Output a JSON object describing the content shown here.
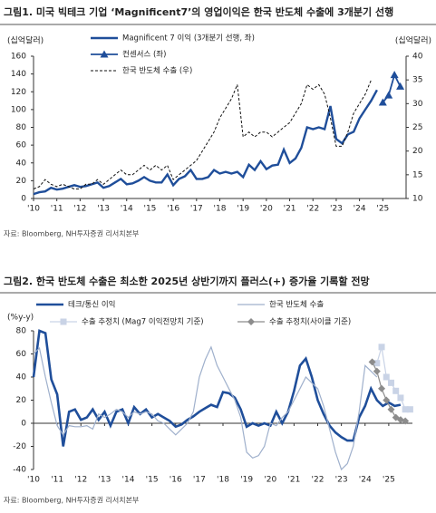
{
  "chart_data": [
    {
      "type": "line",
      "title": "그림1. 미국 빅테크 기업 ‘Magnificent7’의 영업이익은 한국 반도체 수출에 3개분기 선행",
      "y_label": "(십억달러)",
      "y2_label": "(십억달러)",
      "source": "자료: Bloomberg, NH투자증권 리서치본부",
      "xlim": [
        2010,
        2026
      ],
      "xticks": [
        {
          "value": 2010,
          "label": "'10"
        },
        {
          "value": 2011,
          "label": "'11"
        },
        {
          "value": 2012,
          "label": "'12"
        },
        {
          "value": 2013,
          "label": "'13"
        },
        {
          "value": 2014,
          "label": "'14"
        },
        {
          "value": 2015,
          "label": "'15"
        },
        {
          "value": 2016,
          "label": "'16"
        },
        {
          "value": 2017,
          "label": "'17"
        },
        {
          "value": 2018,
          "label": "'18"
        },
        {
          "value": 2019,
          "label": "'19"
        },
        {
          "value": 2020,
          "label": "'20"
        },
        {
          "value": 2021,
          "label": "'21"
        },
        {
          "value": 2022,
          "label": "'22"
        },
        {
          "value": 2023,
          "label": "'23"
        },
        {
          "value": 2024,
          "label": "'24"
        },
        {
          "value": 2025,
          "label": "'25"
        }
      ],
      "ylim": [
        0,
        160
      ],
      "yticks": [
        0,
        20,
        40,
        60,
        80,
        100,
        120,
        140,
        160
      ],
      "y2lim": [
        10,
        40
      ],
      "y2ticks": [
        10,
        15,
        20,
        25,
        30,
        35,
        40
      ],
      "series": [
        {
          "name": "Magnificent 7 이익 (3개분기 선행, 좌)",
          "color": "#1f4e9a",
          "style": "solid",
          "x": [
            2010,
            2010.25,
            2010.5,
            2010.75,
            2011,
            2011.25,
            2011.5,
            2011.75,
            2012,
            2012.25,
            2012.5,
            2012.75,
            2013,
            2013.25,
            2013.5,
            2013.75,
            2014,
            2014.25,
            2014.5,
            2014.75,
            2015,
            2015.25,
            2015.5,
            2015.75,
            2016,
            2016.25,
            2016.5,
            2016.75,
            2017,
            2017.25,
            2017.5,
            2017.75,
            2018,
            2018.25,
            2018.5,
            2018.75,
            2019,
            2019.25,
            2019.5,
            2019.75,
            2020,
            2020.25,
            2020.5,
            2020.75,
            2021,
            2021.25,
            2021.5,
            2021.75,
            2022,
            2022.25,
            2022.5,
            2022.75,
            2023,
            2023.25,
            2023.5,
            2023.75,
            2024,
            2024.25,
            2024.5,
            2024.75
          ],
          "values": [
            5,
            7,
            8,
            12,
            10,
            11,
            13,
            15,
            13,
            14,
            16,
            18,
            12,
            14,
            18,
            22,
            16,
            17,
            20,
            24,
            20,
            18,
            18,
            27,
            15,
            22,
            25,
            32,
            22,
            22,
            24,
            32,
            28,
            30,
            28,
            30,
            24,
            38,
            32,
            42,
            33,
            37,
            38,
            55,
            40,
            45,
            57,
            80,
            78,
            80,
            78,
            104,
            67,
            62,
            72,
            75,
            90,
            100,
            110,
            122
          ]
        },
        {
          "name": "컨센서스 (좌)",
          "color": "#1f4e9a",
          "style": "solid",
          "marker": "triangle",
          "x": [
            2025,
            2025.25,
            2025.5,
            2025.75
          ],
          "values": [
            108,
            116,
            139,
            126
          ]
        },
        {
          "name": "한국 반도체 수출 (우)",
          "color": "#111111",
          "style": "dashed",
          "axis": "y2",
          "x": [
            2010,
            2010.25,
            2010.5,
            2010.75,
            2011,
            2011.25,
            2011.5,
            2011.75,
            2012,
            2012.25,
            2012.5,
            2012.75,
            2013,
            2013.25,
            2013.5,
            2013.75,
            2014,
            2014.25,
            2014.5,
            2014.75,
            2015,
            2015.25,
            2015.5,
            2015.75,
            2016,
            2016.25,
            2016.5,
            2016.75,
            2017,
            2017.25,
            2017.5,
            2017.75,
            2018,
            2018.25,
            2018.5,
            2018.75,
            2019,
            2019.25,
            2019.5,
            2019.75,
            2020,
            2020.25,
            2020.5,
            2020.75,
            2021,
            2021.25,
            2021.5,
            2021.75,
            2022,
            2022.25,
            2022.5,
            2022.75,
            2023,
            2023.25,
            2023.5,
            2023.75,
            2024,
            2024.25,
            2024.5
          ],
          "values": [
            12,
            12.5,
            14,
            13,
            12.5,
            13,
            12.5,
            12,
            12,
            13,
            13,
            14,
            13,
            14,
            15,
            16,
            15,
            15,
            16,
            17,
            16,
            17,
            16,
            17,
            14,
            15,
            16,
            17,
            18,
            20,
            22,
            24,
            27,
            29,
            31,
            34,
            23,
            24,
            23,
            24,
            24,
            23,
            24,
            25,
            26,
            28,
            30,
            34,
            33,
            34,
            32,
            27,
            21,
            21,
            24,
            28,
            30,
            32,
            35
          ]
        }
      ]
    },
    {
      "type": "line",
      "title": "그림2. 한국 반도체 수출은 최소한 2025년 상반기까지 플러스(+) 증가율 기록할 전망",
      "y_label": "(%y-y)",
      "source": "자료: Bloomberg, NH투자증권 리서치본부",
      "xlim": [
        2010,
        2026
      ],
      "xticks": [
        {
          "value": 2010,
          "label": "'10"
        },
        {
          "value": 2011,
          "label": "'11"
        },
        {
          "value": 2012,
          "label": "'12"
        },
        {
          "value": 2013,
          "label": "'13"
        },
        {
          "value": 2014,
          "label": "'14"
        },
        {
          "value": 2015,
          "label": "'15"
        },
        {
          "value": 2016,
          "label": "'16"
        },
        {
          "value": 2017,
          "label": "'17"
        },
        {
          "value": 2018,
          "label": "'18"
        },
        {
          "value": 2019,
          "label": "'19"
        },
        {
          "value": 2020,
          "label": "'20"
        },
        {
          "value": 2021,
          "label": "'21"
        },
        {
          "value": 2022,
          "label": "'22"
        },
        {
          "value": 2023,
          "label": "'23"
        },
        {
          "value": 2024,
          "label": "'24"
        },
        {
          "value": 2025,
          "label": "'25"
        }
      ],
      "ylim": [
        -40,
        80
      ],
      "yticks": [
        -40,
        -20,
        0,
        20,
        40,
        60,
        80
      ],
      "series": [
        {
          "name": "테크/통신 이익",
          "color": "#1f4e9a",
          "style": "solid",
          "x": [
            2010,
            2010.25,
            2010.5,
            2010.75,
            2011,
            2011.25,
            2011.5,
            2011.75,
            2012,
            2012.25,
            2012.5,
            2012.75,
            2013,
            2013.25,
            2013.5,
            2013.75,
            2014,
            2014.25,
            2014.5,
            2014.75,
            2015,
            2015.25,
            2015.5,
            2015.75,
            2016,
            2016.25,
            2016.5,
            2016.75,
            2017,
            2017.25,
            2017.5,
            2017.75,
            2018,
            2018.25,
            2018.5,
            2018.75,
            2019,
            2019.25,
            2019.5,
            2019.75,
            2020,
            2020.25,
            2020.5,
            2020.75,
            2021,
            2021.25,
            2021.5,
            2021.75,
            2022,
            2022.25,
            2022.5,
            2022.75,
            2023,
            2023.25,
            2023.5,
            2023.75,
            2024,
            2024.25,
            2024.5,
            2024.75,
            2025,
            2025.25,
            2025.5
          ],
          "values": [
            40,
            80,
            78,
            38,
            25,
            -20,
            10,
            12,
            3,
            5,
            12,
            3,
            10,
            -2,
            10,
            12,
            0,
            14,
            8,
            12,
            5,
            8,
            5,
            2,
            -3,
            -1,
            3,
            6,
            10,
            13,
            16,
            14,
            27,
            26,
            22,
            12,
            -3,
            0,
            -2,
            0,
            -2,
            10,
            0,
            10,
            28,
            50,
            56,
            40,
            20,
            8,
            -2,
            -8,
            -12,
            -15,
            -15,
            5,
            15,
            30,
            20,
            15,
            18,
            15,
            16
          ]
        },
        {
          "name": "한국 반도체 수출",
          "color": "#9fb0cc",
          "style": "solid",
          "x": [
            2010,
            2010.25,
            2010.5,
            2010.75,
            2011,
            2011.25,
            2011.5,
            2011.75,
            2012,
            2012.25,
            2012.5,
            2012.75,
            2013,
            2013.25,
            2013.5,
            2013.75,
            2014,
            2014.25,
            2014.5,
            2014.75,
            2015,
            2015.25,
            2015.5,
            2015.75,
            2016,
            2016.25,
            2016.5,
            2016.75,
            2017,
            2017.25,
            2017.5,
            2017.75,
            2018,
            2018.25,
            2018.5,
            2018.75,
            2019,
            2019.25,
            2019.5,
            2019.75,
            2020,
            2020.25,
            2020.5,
            2020.75,
            2021,
            2021.25,
            2021.5,
            2021.75,
            2022,
            2022.25,
            2022.5,
            2022.75,
            2023,
            2023.25,
            2023.5,
            2023.75,
            2024,
            2024.25,
            2024.5
          ],
          "values": [
            60,
            65,
            40,
            18,
            -2,
            -10,
            -2,
            -3,
            -3,
            -2,
            -5,
            8,
            5,
            8,
            12,
            10,
            5,
            10,
            8,
            10,
            8,
            2,
            0,
            -5,
            -10,
            -5,
            0,
            10,
            40,
            55,
            66,
            50,
            40,
            30,
            20,
            5,
            -25,
            -30,
            -28,
            -20,
            0,
            -2,
            5,
            10,
            20,
            30,
            40,
            35,
            30,
            15,
            -5,
            -25,
            -40,
            -35,
            -20,
            10,
            50,
            45,
            40
          ]
        },
        {
          "name": "수출 추정치 (Mag7 이익전망치 기준)",
          "color": "#c9d3e6",
          "style": "solid",
          "marker": "square",
          "x": [
            2024.5,
            2024.7,
            2024.9,
            2025.1,
            2025.3,
            2025.5,
            2025.7,
            2025.9
          ],
          "values": [
            52,
            66,
            40,
            35,
            28,
            22,
            12,
            12
          ]
        },
        {
          "name": "수출 추정치(사이클 기준)",
          "color": "#8c8c8c",
          "style": "solid",
          "marker": "diamond",
          "x": [
            2024.3,
            2024.5,
            2024.7,
            2024.9,
            2025.1,
            2025.3,
            2025.5,
            2025.7
          ],
          "values": [
            53,
            45,
            30,
            20,
            12,
            5,
            3,
            2
          ]
        }
      ]
    }
  ]
}
